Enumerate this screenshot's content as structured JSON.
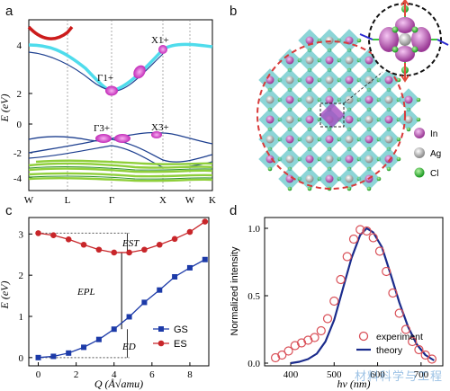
{
  "panels": {
    "a": {
      "label": "a",
      "ylabel": "E (eV)",
      "yticks": [
        "4",
        "2",
        "0",
        "-2",
        "-4"
      ],
      "kpoints": [
        "W",
        "L",
        "Γ",
        "X",
        "W",
        "K"
      ],
      "annotations": [
        "Γ1+",
        "X1+",
        "Γ3+",
        "X3+"
      ]
    },
    "b": {
      "label": "b",
      "legend": [
        {
          "name": "In",
          "color": "#c85fc4"
        },
        {
          "name": "Ag",
          "color": "#b9b9b9"
        },
        {
          "name": "Cl",
          "color": "#36c23a"
        }
      ]
    },
    "c": {
      "label": "c",
      "xlabel": "Q (Å√amu)",
      "ylabel": "E (eV)",
      "legend_gs": "GS",
      "legend_es": "ES",
      "annot_est": "EST",
      "annot_epl": "EPL",
      "annot_ed": "ED",
      "colors": {
        "gs": "#1c3aa8",
        "es": "#c8262a"
      }
    },
    "d": {
      "label": "d",
      "xlabel": "hν (nm)",
      "ylabel": "Normalized intensity",
      "legend_exp": "experiment",
      "legend_th": "theory",
      "colors": {
        "experiment": "#d94f57",
        "theory": "#1a2b8c"
      }
    }
  },
  "watermark": "材料科学与工程",
  "chart_data": [
    {
      "type": "line",
      "panel": "c",
      "xlabel": "Q (Å√amu)",
      "ylabel": "E (eV)",
      "xlim": [
        -0.5,
        9
      ],
      "ylim": [
        -0.2,
        3.4
      ],
      "xticks": [
        0,
        2,
        4,
        6,
        8
      ],
      "yticks": [
        0,
        1,
        2,
        3
      ],
      "series": [
        {
          "name": "GS",
          "x": [
            0,
            0.8,
            1.6,
            2.4,
            3.2,
            4.0,
            4.8,
            5.6,
            6.4,
            7.2,
            8.0,
            8.8
          ],
          "values": [
            0.0,
            0.03,
            0.11,
            0.25,
            0.44,
            0.69,
            0.99,
            1.34,
            1.64,
            1.96,
            2.18,
            2.38
          ]
        },
        {
          "name": "ES",
          "x": [
            0,
            0.8,
            1.6,
            2.4,
            3.2,
            4.0,
            4.8,
            5.6,
            6.4,
            7.2,
            8.0,
            8.8
          ],
          "values": [
            3.02,
            2.97,
            2.87,
            2.74,
            2.62,
            2.55,
            2.55,
            2.62,
            2.74,
            2.88,
            3.05,
            3.3
          ]
        }
      ]
    },
    {
      "type": "line",
      "panel": "d",
      "xlabel": "hν (nm)",
      "ylabel": "Normalized intensity",
      "xlim": [
        340,
        750
      ],
      "ylim": [
        -0.02,
        1.08
      ],
      "xticks": [
        400,
        500,
        600,
        700
      ],
      "yticks": [
        0.0,
        0.5,
        1.0
      ],
      "series": [
        {
          "name": "experiment",
          "x": [
            365,
            380,
            395,
            410,
            425,
            440,
            455,
            470,
            485,
            500,
            515,
            530,
            545,
            560,
            575,
            590,
            605,
            620,
            635,
            650,
            665,
            680,
            695,
            710,
            725
          ],
          "values": [
            0.04,
            0.06,
            0.09,
            0.13,
            0.15,
            0.17,
            0.19,
            0.24,
            0.33,
            0.46,
            0.62,
            0.79,
            0.92,
            0.99,
            0.98,
            0.93,
            0.83,
            0.68,
            0.52,
            0.37,
            0.25,
            0.16,
            0.1,
            0.06,
            0.03
          ]
        },
        {
          "name": "theory",
          "x": [
            400,
            420,
            440,
            460,
            480,
            500,
            520,
            540,
            560,
            575,
            590,
            610,
            630,
            650,
            670,
            690,
            710,
            730
          ],
          "values": [
            0.0,
            0.01,
            0.03,
            0.07,
            0.16,
            0.32,
            0.55,
            0.78,
            0.95,
            1.0,
            0.97,
            0.86,
            0.66,
            0.45,
            0.27,
            0.14,
            0.06,
            0.02
          ]
        }
      ]
    }
  ]
}
